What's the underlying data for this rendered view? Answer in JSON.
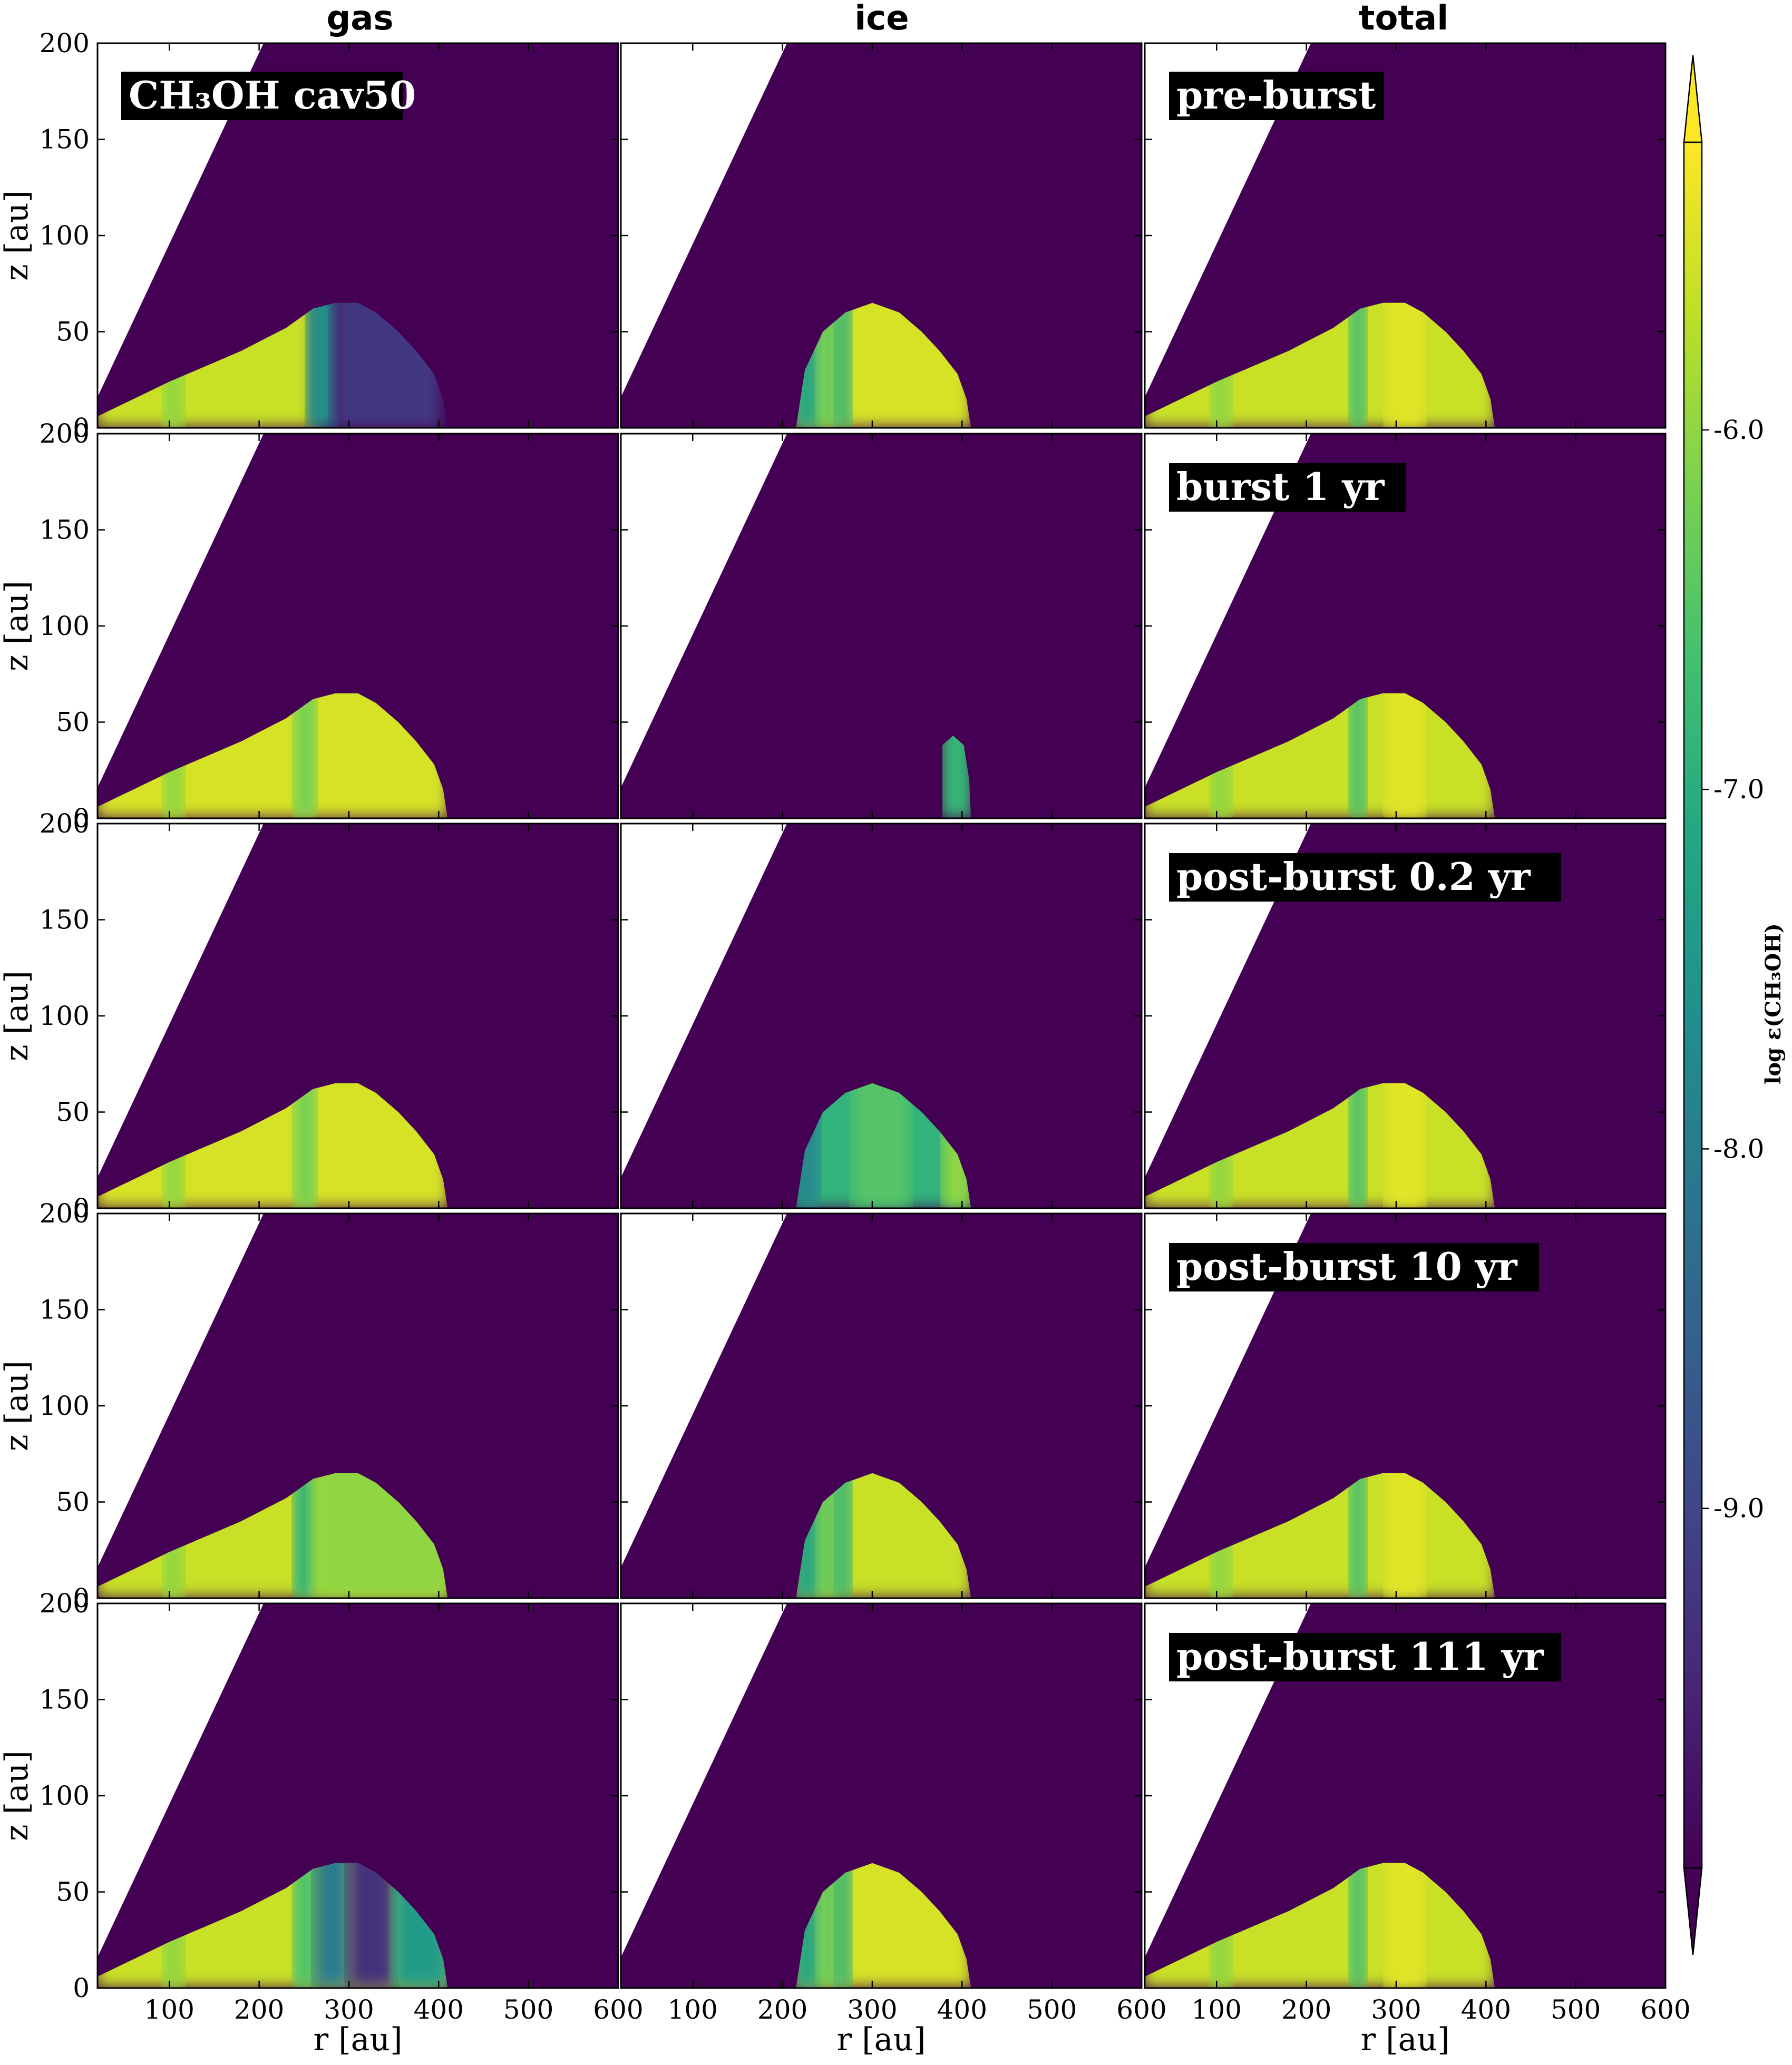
{
  "figure": {
    "column_titles": [
      "gas",
      "ice",
      "total"
    ],
    "xlabel": "r [au]",
    "ylabel": "z [au]",
    "x_ticks": [
      "100",
      "200",
      "300",
      "400",
      "500",
      "600"
    ],
    "y_ticks": [
      "0",
      "50",
      "100",
      "150",
      "200"
    ],
    "panel_labels": {
      "r0c0": "CH₃OH  cav50",
      "r0c2": "pre-burst",
      "r1c2": "burst 1 yr",
      "r2c2": "post-burst 0.2 yr",
      "r3c2": "post-burst 10 yr",
      "r4c2": "post-burst 111 yr"
    },
    "colorbar": {
      "label": "log ε(CH₃OH)",
      "ticks": [
        "-6.0",
        "-7.0",
        "-8.0",
        "-9.0"
      ],
      "colormap": "viridis"
    }
  },
  "chart_data": {
    "type": "heatmap",
    "quantity": "log ε(CH₃OH)",
    "xlim": [
      20,
      600
    ],
    "ylim": [
      0,
      200
    ],
    "rows": [
      "pre-burst",
      "burst 1 yr",
      "post-burst 0.2 yr",
      "post-burst 10 yr",
      "post-burst 111 yr"
    ],
    "columns": [
      "gas",
      "ice",
      "total"
    ],
    "colorbar_range": [
      -10.0,
      -5.2
    ],
    "colorbar_ticks": [
      -6.0,
      -7.0,
      -8.0,
      -9.0
    ],
    "outer_edge_r": 410,
    "max_height_z": 65,
    "peak_value": -5.4,
    "background_value": -10.0,
    "panels": [
      {
        "row": "pre-burst",
        "column": "gas",
        "description": "gas enhanced inside r<260 au; depleted band 260-400 au",
        "typical_log_abundance": -5.6
      },
      {
        "row": "pre-burst",
        "column": "ice",
        "description": "ice reservoir 220-410 au",
        "typical_log_abundance": -5.5
      },
      {
        "row": "pre-burst",
        "column": "total",
        "typical_log_abundance": -5.6
      },
      {
        "row": "burst 1 yr",
        "column": "gas",
        "typical_log_abundance": -5.5
      },
      {
        "row": "burst 1 yr",
        "column": "ice",
        "description": "only thin remnant near r≈390 au",
        "typical_log_abundance": -7.0
      },
      {
        "row": "burst 1 yr",
        "column": "total",
        "typical_log_abundance": -5.6
      },
      {
        "row": "post-burst 0.2 yr",
        "column": "gas",
        "typical_log_abundance": -5.5
      },
      {
        "row": "post-burst 0.2 yr",
        "column": "ice",
        "description": "partial refreeze",
        "typical_log_abundance": -6.8
      },
      {
        "row": "post-burst 0.2 yr",
        "column": "total",
        "typical_log_abundance": -5.6
      },
      {
        "row": "post-burst 10 yr",
        "column": "gas",
        "typical_log_abundance": -6.2
      },
      {
        "row": "post-burst 10 yr",
        "column": "ice",
        "typical_log_abundance": -5.6
      },
      {
        "row": "post-burst 10 yr",
        "column": "total",
        "typical_log_abundance": -5.6
      },
      {
        "row": "post-burst 111 yr",
        "column": "gas",
        "typical_log_abundance": -6.4
      },
      {
        "row": "post-burst 111 yr",
        "column": "ice",
        "typical_log_abundance": -5.5
      },
      {
        "row": "post-burst 111 yr",
        "column": "total",
        "typical_log_abundance": -5.6
      }
    ]
  }
}
